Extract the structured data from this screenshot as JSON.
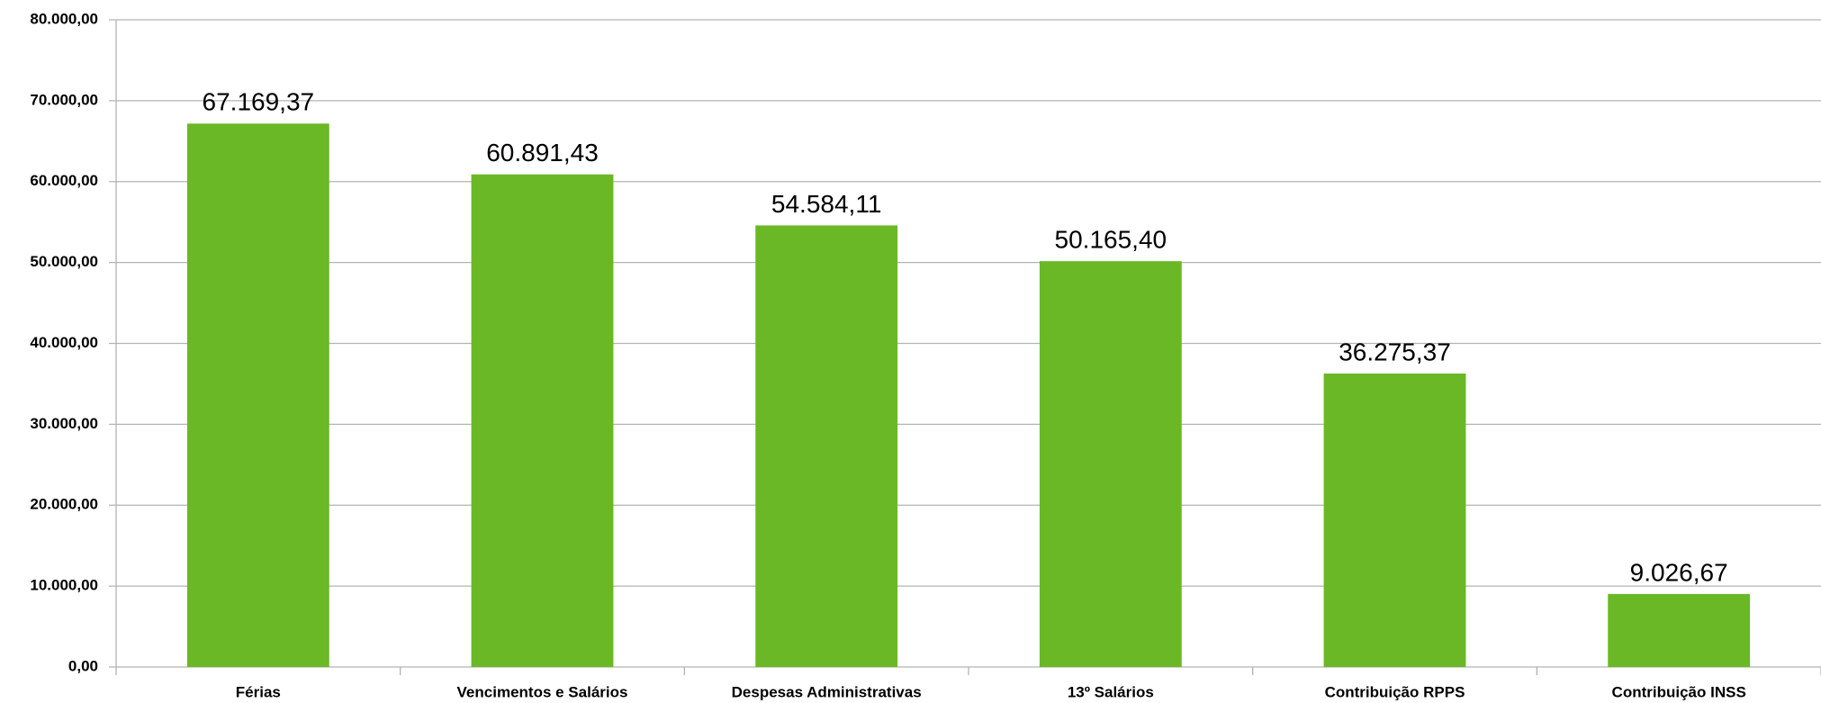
{
  "chart_data": {
    "type": "bar",
    "categories": [
      "Férias",
      "Vencimentos e Salários",
      "Despesas Administrativas",
      "13º Salários",
      "Contribuição RPPS",
      "Contribuição INSS"
    ],
    "values": [
      67169.37,
      60891.43,
      54584.11,
      50165.4,
      36275.37,
      9026.67
    ],
    "value_labels": [
      "67.169,37",
      "60.891,43",
      "54.584,11",
      "50.165,40",
      "36.275,37",
      "9.026,67"
    ],
    "color": "#6ab825",
    "ylim": [
      0,
      80000
    ],
    "yticks": [
      {
        "value": 0,
        "label": "0,00"
      },
      {
        "value": 10000,
        "label": "10.000,00"
      },
      {
        "value": 20000,
        "label": "20.000,00"
      },
      {
        "value": 30000,
        "label": "30.000,00"
      },
      {
        "value": 40000,
        "label": "40.000,00"
      },
      {
        "value": 50000,
        "label": "50.000,00"
      },
      {
        "value": 60000,
        "label": "60.000,00"
      },
      {
        "value": 70000,
        "label": "70.000,00"
      },
      {
        "value": 80000,
        "label": "80.000,00"
      }
    ],
    "grid": true
  }
}
